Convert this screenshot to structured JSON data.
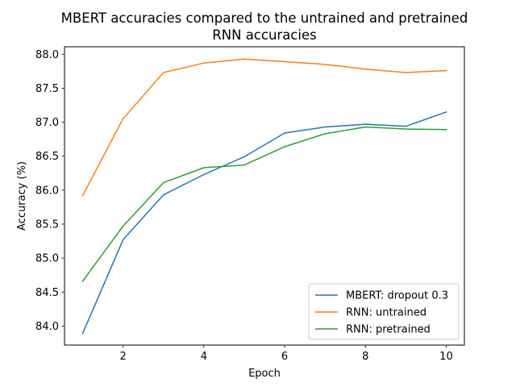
{
  "chart_data": {
    "type": "line",
    "title_lines": [
      "MBERT accuracies compared to the untrained and pretrained",
      "RNN accuracies"
    ],
    "xlabel": "Epoch",
    "ylabel": "Accuracy (%)",
    "xlim": [
      0.55,
      10.45
    ],
    "ylim": [
      83.72,
      88.11
    ],
    "xticks": [
      2,
      4,
      6,
      8,
      10
    ],
    "yticks": [
      84.0,
      84.5,
      85.0,
      85.5,
      86.0,
      86.5,
      87.0,
      87.5,
      88.0
    ],
    "grid": false,
    "legend_position": "lower-right",
    "x": [
      1,
      2,
      3,
      4,
      5,
      6,
      7,
      8,
      9,
      10
    ],
    "series": [
      {
        "name": "MBERT: dropout 0.3",
        "color": "#1f77b4",
        "values": [
          83.89,
          85.27,
          85.93,
          86.23,
          86.49,
          86.84,
          86.93,
          86.97,
          86.94,
          87.15
        ]
      },
      {
        "name": "RNN: untrained",
        "color": "#ff7f0e",
        "values": [
          85.92,
          87.05,
          87.73,
          87.87,
          87.93,
          87.89,
          87.85,
          87.78,
          87.73,
          87.76
        ]
      },
      {
        "name": "RNN: pretrained",
        "color": "#2ca02c",
        "values": [
          84.66,
          85.47,
          86.11,
          86.33,
          86.37,
          86.64,
          86.83,
          86.93,
          86.9,
          86.89
        ]
      }
    ]
  }
}
